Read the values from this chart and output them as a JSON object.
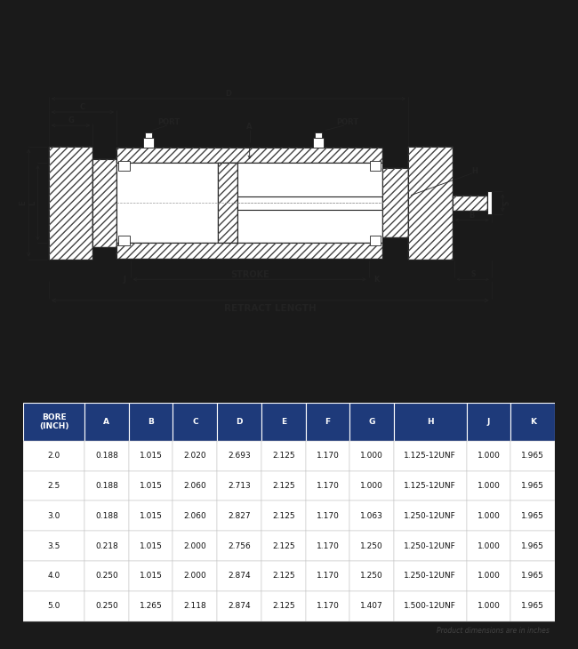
{
  "bg_color": "#1a1a1a",
  "drawing_bg": "#ffffff",
  "table_bg": "#ffffff",
  "header_bg": "#1e3a7a",
  "header_text_color": "#ffffff",
  "row_text_color": "#111111",
  "table_columns": [
    "BORE\n(INCH)",
    "A",
    "B",
    "C",
    "D",
    "E",
    "F",
    "G",
    "H",
    "J",
    "K"
  ],
  "table_data": [
    [
      "2.0",
      "0.188",
      "1.015",
      "2.020",
      "2.693",
      "2.125",
      "1.170",
      "1.000",
      "1.125-12UNF",
      "1.000",
      "1.965"
    ],
    [
      "2.5",
      "0.188",
      "1.015",
      "2.060",
      "2.713",
      "2.125",
      "1.170",
      "1.000",
      "1.125-12UNF",
      "1.000",
      "1.965"
    ],
    [
      "3.0",
      "0.188",
      "1.015",
      "2.060",
      "2.827",
      "2.125",
      "1.170",
      "1.063",
      "1.250-12UNF",
      "1.000",
      "1.965"
    ],
    [
      "3.5",
      "0.218",
      "1.015",
      "2.000",
      "2.756",
      "2.125",
      "1.170",
      "1.250",
      "1.250-12UNF",
      "1.000",
      "1.965"
    ],
    [
      "4.0",
      "0.250",
      "1.015",
      "2.000",
      "2.874",
      "2.125",
      "1.170",
      "1.250",
      "1.250-12UNF",
      "1.000",
      "1.965"
    ],
    [
      "5.0",
      "0.250",
      "1.265",
      "2.118",
      "2.874",
      "2.125",
      "1.170",
      "1.407",
      "1.500-12UNF",
      "1.000",
      "1.965"
    ]
  ],
  "footnote": "Product dimensions are in inches",
  "lc": "#222222",
  "hatch_color": "#444444"
}
